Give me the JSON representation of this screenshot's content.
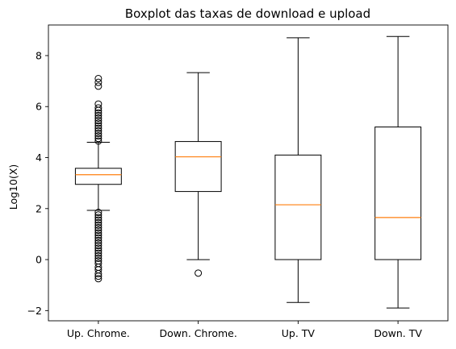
{
  "chart_data": {
    "type": "boxplot",
    "title": "Boxplot das taxas de download e upload",
    "xlabel": "",
    "ylabel": "Log10(X)",
    "ylim": [
      -2.4,
      9.2
    ],
    "yticks": [
      -2,
      0,
      2,
      4,
      6,
      8
    ],
    "categories": [
      "Up. Chrome.",
      "Down. Chrome.",
      "Up. TV",
      "Down. TV"
    ],
    "boxes": [
      {
        "whisker_low": 1.93,
        "q1": 2.95,
        "median": 3.33,
        "q3": 3.58,
        "whisker_high": 4.6,
        "outliers": [
          7.1,
          6.95,
          6.8,
          6.1,
          5.95,
          5.85,
          5.75,
          5.65,
          5.55,
          5.45,
          5.35,
          5.25,
          5.15,
          5.05,
          4.95,
          4.85,
          4.75,
          4.65,
          1.85,
          1.75,
          1.65,
          1.55,
          1.45,
          1.35,
          1.25,
          1.15,
          1.05,
          0.95,
          0.85,
          0.75,
          0.65,
          0.55,
          0.45,
          0.35,
          0.25,
          0.15,
          0.05,
          -0.05,
          -0.15,
          -0.3,
          -0.4,
          -0.55,
          -0.65,
          -0.75
        ]
      },
      {
        "whisker_low": 0.0,
        "q1": 2.67,
        "median": 4.03,
        "q3": 4.63,
        "whisker_high": 7.33,
        "outliers": [
          -0.53
        ]
      },
      {
        "whisker_low": -1.68,
        "q1": 0.0,
        "median": 2.15,
        "q3": 4.1,
        "whisker_high": 8.7,
        "outliers": []
      },
      {
        "whisker_low": -1.9,
        "q1": 0.0,
        "median": 1.65,
        "q3": 5.2,
        "whisker_high": 8.75,
        "outliers": []
      }
    ],
    "colors": {
      "box": "#000000",
      "median": "#ff7f0e"
    },
    "grid": false
  }
}
